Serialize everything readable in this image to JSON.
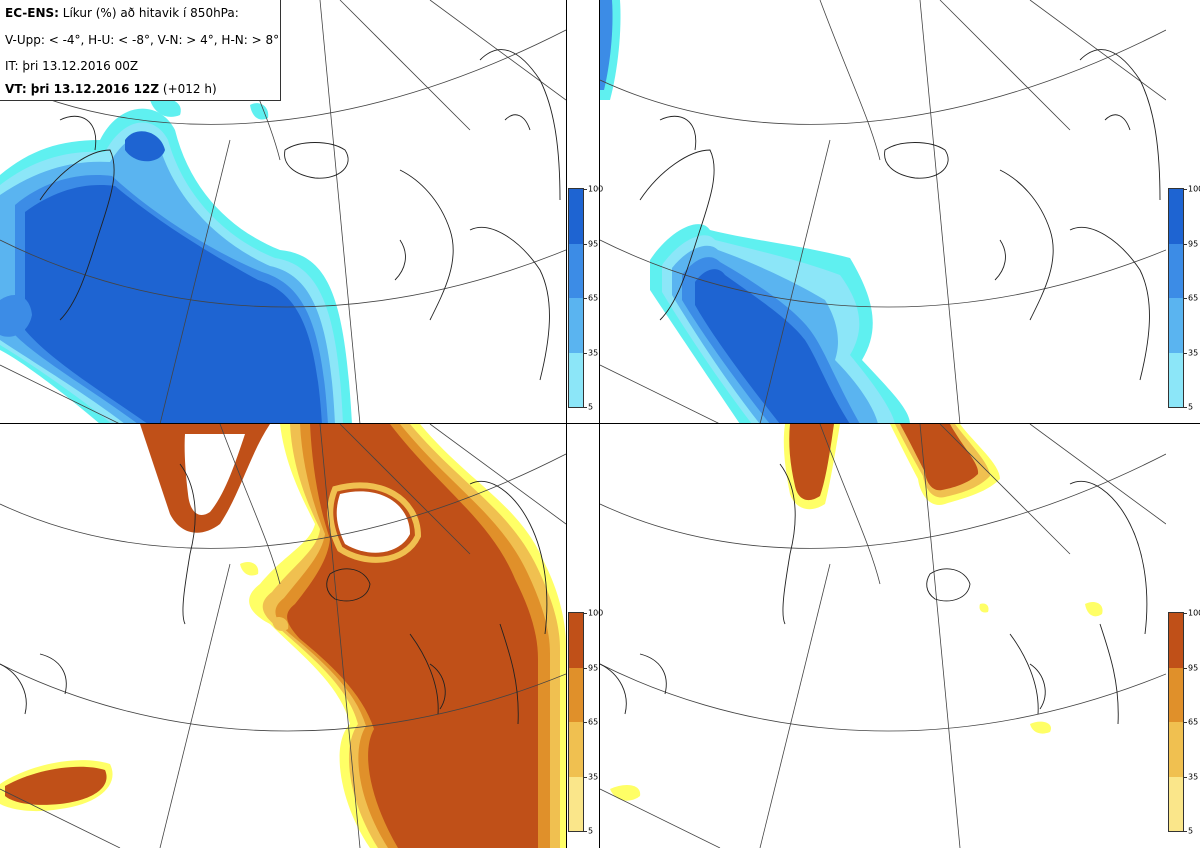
{
  "header": {
    "model": "EC-ENS:",
    "title": "Líkur (%) að hitavik í 850hPa:",
    "thresholds": "V-Upp: < -4°, H-U: < -8°, V-N: > 4°, H-N: > 8°",
    "initial_time": "IT: þri 13.12.2016 00Z",
    "valid_label": "VT: þri 13.12.2016 12Z",
    "lead_time": "(+012 h)"
  },
  "panels": [
    {
      "id": "top-left",
      "field": "cold",
      "threshold": "< -4°"
    },
    {
      "id": "top-right",
      "field": "cold",
      "threshold": "< -8°"
    },
    {
      "id": "bottom-left",
      "field": "warm",
      "threshold": "> 4°"
    },
    {
      "id": "bottom-right",
      "field": "warm",
      "threshold": "> 8°"
    }
  ],
  "colorbar": {
    "levels": [
      "100",
      "95",
      "65",
      "35",
      "5"
    ],
    "cold_colors": [
      "#1e64d2",
      "#3c8ce6",
      "#5ab4f0",
      "#8ce6f8",
      "#5ff0f0"
    ],
    "warm_colors": [
      "#c05018",
      "#e0902a",
      "#f0c050",
      "#fae68a",
      "#ffff66"
    ]
  }
}
